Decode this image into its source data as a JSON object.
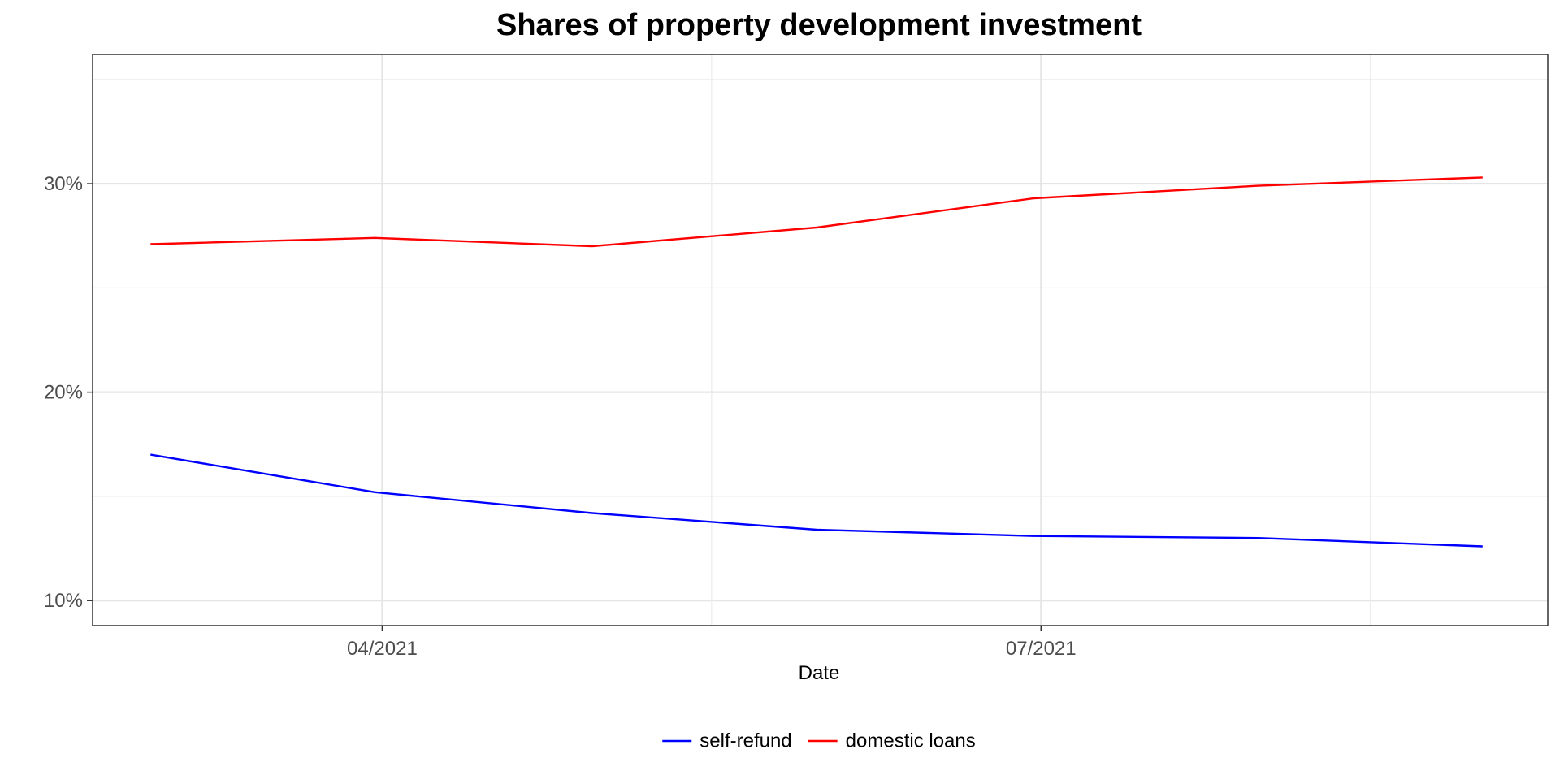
{
  "chart_data": {
    "type": "line",
    "title": "Shares of property development investment",
    "xlabel": "Date",
    "ylabel": "",
    "x": [
      "2021-02-28",
      "2021-03-31",
      "2021-04-30",
      "2021-05-31",
      "2021-06-30",
      "2021-07-31",
      "2021-08-31"
    ],
    "x_ticks": [
      {
        "date": "2021-04-01",
        "label": "04/2021"
      },
      {
        "date": "2021-07-01",
        "label": "07/2021"
      }
    ],
    "xlim": [
      "2021-02-20",
      "2021-09-09"
    ],
    "y_ticks": [
      {
        "value": 10,
        "label": "10%"
      },
      {
        "value": 20,
        "label": "20%"
      },
      {
        "value": 30,
        "label": "30%"
      }
    ],
    "ylim": [
      8.8,
      36.2
    ],
    "y_unit": "%",
    "grid": true,
    "legend_position": "bottom",
    "series": [
      {
        "name": "self-refund",
        "color": "#0000ff",
        "values": [
          17.0,
          15.2,
          14.2,
          13.4,
          13.1,
          13.0,
          12.6
        ]
      },
      {
        "name": "domestic loans",
        "color": "#ff0000",
        "values": [
          27.1,
          27.4,
          27.0,
          27.9,
          29.3,
          29.9,
          30.3
        ]
      }
    ]
  }
}
